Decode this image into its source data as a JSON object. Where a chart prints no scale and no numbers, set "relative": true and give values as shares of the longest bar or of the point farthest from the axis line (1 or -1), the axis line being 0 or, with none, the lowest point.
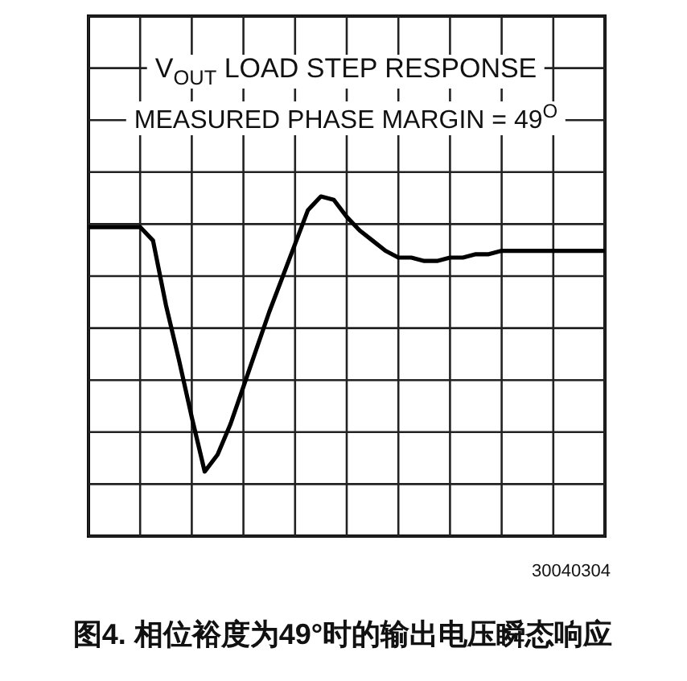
{
  "chart_data": {
    "type": "line",
    "title": "V$_{OUT}$ LOAD STEP RESPONSE",
    "subtitle": "MEASURED PHASE MARGIN = 49$^{O}$",
    "annotations": [
      "30040304",
      "图4. 相位裕度为49°时的输出电压瞬态响应"
    ],
    "categories": [
      null,
      null,
      null,
      null,
      null,
      null,
      null,
      null,
      null,
      null,
      null,
      null,
      null,
      null,
      null,
      null,
      null,
      null,
      null,
      null,
      null,
      null,
      null,
      null,
      null,
      null,
      null,
      null,
      null,
      null,
      null,
      null,
      null,
      null,
      null,
      null,
      null,
      null,
      null,
      null,
      null
    ],
    "relative": true,
    "grid": true,
    "series": [
      {
        "color": "#000000",
        "values": [
          0.91,
          0.91,
          0.91,
          0.91,
          0.91,
          0.87,
          0.68,
          0.52,
          0.35,
          0.19,
          0.24,
          0.33,
          0.44,
          0.55,
          0.66,
          0.76,
          0.86,
          0.96,
          1,
          0.99,
          0.94,
          0.9,
          0.87,
          0.84,
          0.82,
          0.82,
          0.81,
          0.81,
          0.82,
          0.82,
          0.83,
          0.83,
          0.84,
          0.84,
          0.84,
          0.84,
          0.84,
          0.84,
          0.84,
          0.84,
          0.84
        ]
      }
    ]
  }
}
